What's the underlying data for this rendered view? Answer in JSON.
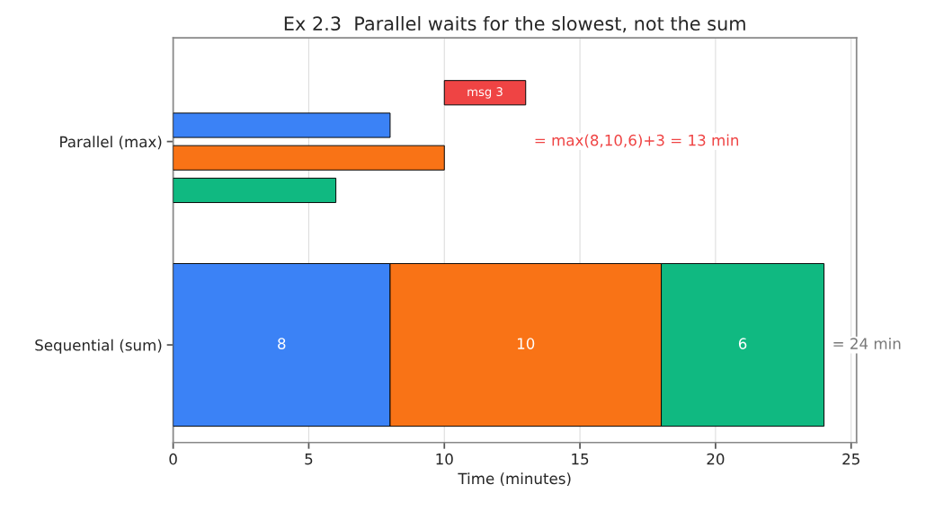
{
  "chart_data": {
    "type": "bar",
    "orientation": "horizontal",
    "title": "Ex 2.3  Parallel waits for the slowest, not the sum",
    "xlabel": "Time (minutes)",
    "categories": [
      "Parallel (max)",
      "Sequential (sum)"
    ],
    "series": [
      {
        "color": "#ef4444",
        "values": [
          3,
          null
        ],
        "base": [
          10,
          null
        ],
        "value_labels": [
          "msg 3",
          null
        ]
      },
      {
        "color": "#3b82f6",
        "values": [
          8,
          8
        ],
        "base": [
          0,
          0
        ],
        "value_labels": [
          null,
          "8"
        ]
      },
      {
        "color": "#f97316",
        "values": [
          10,
          10
        ],
        "base": [
          0,
          8
        ],
        "value_labels": [
          null,
          "10"
        ]
      },
      {
        "color": "#10b981",
        "values": [
          6,
          6
        ],
        "base": [
          0,
          18
        ],
        "value_labels": [
          null,
          "6"
        ]
      }
    ],
    "annotations": [
      "= max(8,10,6)+3 = 13 min",
      "= 24 min"
    ],
    "xlim": [
      0,
      25.2
    ],
    "xticks": [
      0,
      5,
      10,
      15,
      20,
      25
    ],
    "grid": "x",
    "legend": false
  }
}
